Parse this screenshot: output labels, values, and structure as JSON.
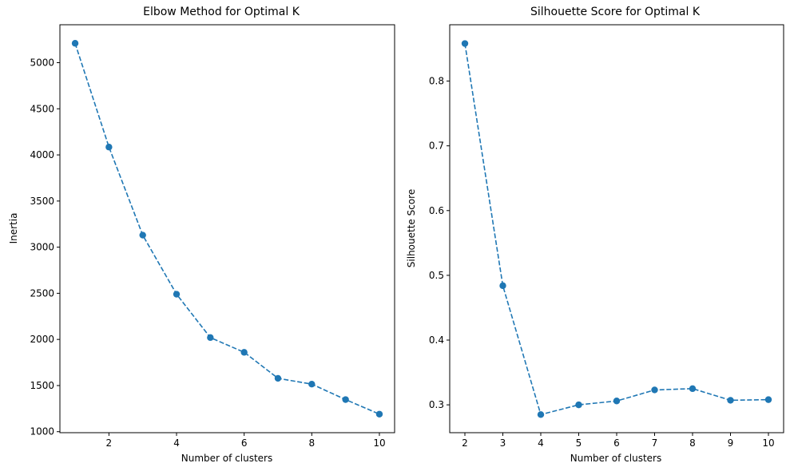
{
  "chart_data": [
    {
      "type": "line",
      "title": "Elbow Method for Optimal K",
      "xlabel": "Number of clusters",
      "ylabel": "Inertia",
      "x": [
        1,
        2,
        3,
        4,
        5,
        6,
        7,
        8,
        9,
        10
      ],
      "series": [
        {
          "values": [
            5210,
            4085,
            3130,
            2490,
            2020,
            1860,
            1578,
            1515,
            1348,
            1190
          ],
          "color": "#1f77b4",
          "line_style": "dashed",
          "marker": "circle"
        }
      ],
      "xlim": [
        0.55,
        10.45
      ],
      "ylim": [
        989,
        5411
      ],
      "xticks": [
        2,
        4,
        6,
        8,
        10
      ],
      "xtick_labels": [
        "2",
        "4",
        "6",
        "8",
        "10"
      ],
      "yticks": [
        1000,
        1500,
        2000,
        2500,
        3000,
        3500,
        4000,
        4500,
        5000
      ],
      "ytick_labels": [
        "1000",
        "1500",
        "2000",
        "2500",
        "3000",
        "3500",
        "4000",
        "4500",
        "5000"
      ],
      "grid": false,
      "legend": "none"
    },
    {
      "type": "line",
      "title": "Silhouette Score for Optimal K",
      "xlabel": "Number of clusters",
      "ylabel": "Silhouette Score",
      "x": [
        2,
        3,
        4,
        5,
        6,
        7,
        8,
        9,
        10
      ],
      "series": [
        {
          "values": [
            0.858,
            0.484,
            0.285,
            0.3,
            0.306,
            0.323,
            0.325,
            0.307,
            0.308
          ],
          "color": "#1f77b4",
          "line_style": "dashed",
          "marker": "circle"
        }
      ],
      "xlim": [
        1.6,
        10.4
      ],
      "ylim": [
        0.257,
        0.887
      ],
      "xticks": [
        2,
        3,
        4,
        5,
        6,
        7,
        8,
        9,
        10
      ],
      "xtick_labels": [
        "2",
        "3",
        "4",
        "5",
        "6",
        "7",
        "8",
        "9",
        "10"
      ],
      "yticks": [
        0.3,
        0.4,
        0.5,
        0.6,
        0.7,
        0.8
      ],
      "ytick_labels": [
        "0.3",
        "0.4",
        "0.5",
        "0.6",
        "0.7",
        "0.8"
      ],
      "grid": false,
      "legend": "none"
    }
  ]
}
